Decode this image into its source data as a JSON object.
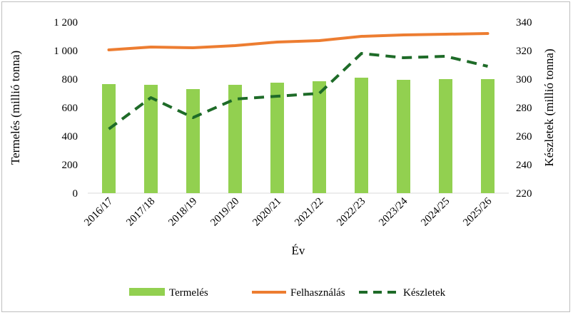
{
  "chart_data": {
    "type": "bar",
    "categories": [
      "2016/17",
      "2017/18",
      "2018/19",
      "2019/20",
      "2020/21",
      "2021/22",
      "2022/23",
      "2023/24",
      "2024/25",
      "2025/26"
    ],
    "series": [
      {
        "name": "Termelés",
        "type": "bar",
        "axis": "left",
        "color": "#92d050",
        "values": [
          765,
          760,
          730,
          760,
          775,
          785,
          810,
          795,
          800,
          800
        ]
      },
      {
        "name": "Felhasználás",
        "type": "line",
        "axis": "left",
        "color": "#ed7d31",
        "dash": "solid",
        "values": [
          1005,
          1025,
          1020,
          1035,
          1060,
          1070,
          1100,
          1110,
          1115,
          1120
        ]
      },
      {
        "name": "Készletek",
        "type": "line",
        "axis": "right",
        "color": "#1e6b28",
        "dash": "dashed",
        "values": [
          265,
          287,
          273,
          286,
          288,
          290,
          318,
          315,
          316,
          309
        ]
      }
    ],
    "xlabel": "Év",
    "ylabel": "Termelés (millió tonna)",
    "y2label": "Készletek (millió tonna)",
    "ylim": [
      0,
      1200
    ],
    "y2lim": [
      220,
      340
    ],
    "yticks": [
      "0",
      "200",
      "400",
      "600",
      "800",
      "1 000",
      "1 200"
    ],
    "y2ticks": [
      "220",
      "240",
      "260",
      "280",
      "300",
      "320",
      "340"
    ],
    "grid": false,
    "legend": "bottom"
  }
}
